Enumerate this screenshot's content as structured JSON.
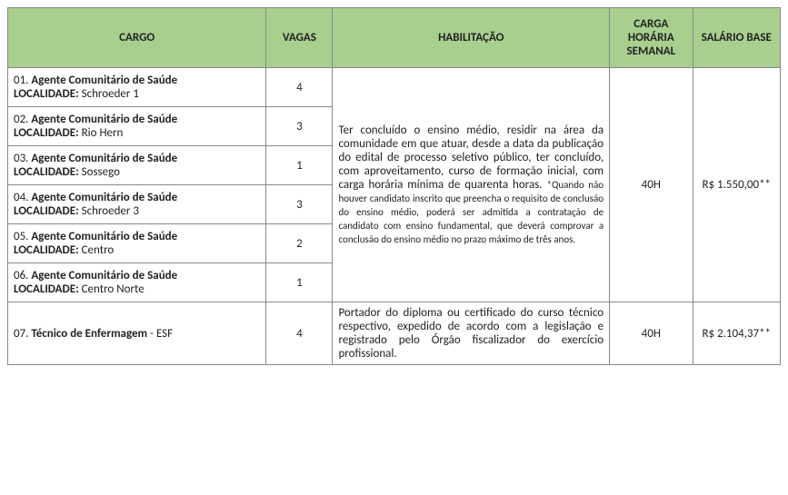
{
  "headers": {
    "cargo": "CARGO",
    "vagas": "VAGAS",
    "habilitacao": "HABILITAÇÃO",
    "carga": "CARGA HORÁRIA SEMANAL",
    "salario": "SALÁRIO BASE"
  },
  "group1": {
    "rows": [
      {
        "num": "01.",
        "title": "Agente Comunitário de Saúde",
        "loc_label": "LOCALIDADE:",
        "loc_value": "Schroeder 1",
        "vagas": "4"
      },
      {
        "num": "02.",
        "title": "Agente Comunitário de Saúde",
        "loc_label": "LOCALIDADE:",
        "loc_value": "Rio Hern",
        "vagas": "3"
      },
      {
        "num": "03.",
        "title": "Agente Comunitário de Saúde",
        "loc_label": "LOCALIDADE:",
        "loc_value": "Sossego",
        "vagas": "1"
      },
      {
        "num": "04.",
        "title": "Agente Comunitário de Saúde",
        "loc_label": "LOCALIDADE:",
        "loc_value": "Schroeder 3",
        "vagas": "3"
      },
      {
        "num": "05.",
        "title": "Agente Comunitário de Saúde",
        "loc_label": "LOCALIDADE:",
        "loc_value": "Centro",
        "vagas": "2"
      },
      {
        "num": "06.",
        "title": "Agente Comunitário de Saúde",
        "loc_label": "LOCALIDADE:",
        "loc_value": "Centro Norte",
        "vagas": "1"
      }
    ],
    "habilitacao_main": "Ter concluído o ensino médio, residir na área da comunidade em que atuar, desde a data da publicação do edital de processo seletivo público, ter concluído, com aproveitamento, curso de formação inicial, com carga horária mínima de quarenta horas. ",
    "habilitacao_note": "*Quando não houver candidato inscrito que preencha o requisito de conclusão do ensino médio, poderá ser admitida a contratação de candidato com ensino fundamental, que deverá comprovar a conclusão do ensino médio no prazo máximo de três anos.",
    "carga": "40H",
    "salario": "R$ 1.550,00**"
  },
  "group2": {
    "num": "07.",
    "title": "Técnico de Enfermagem",
    "suffix": " - ESF",
    "vagas": "4",
    "habilitacao": "Portador do diploma ou certificado do curso técnico respectivo, expedido de acordo com a legislação e registrado pelo Órgão fiscalizador do exercício profissional.",
    "carga": "40H",
    "salario": "R$ 2.104,37**"
  },
  "colors": {
    "header_bg": "#a8cf8e",
    "border": "#888888"
  }
}
